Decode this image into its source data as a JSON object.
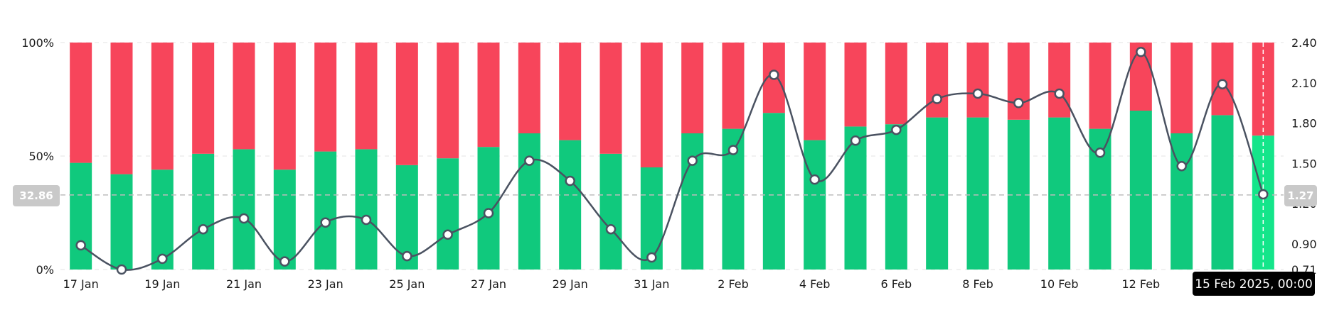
{
  "chart_data": {
    "type": "bar",
    "stacked": true,
    "categories": [
      "17 Jan",
      "18 Jan",
      "19 Jan",
      "20 Jan",
      "21 Jan",
      "22 Jan",
      "23 Jan",
      "24 Jan",
      "25 Jan",
      "26 Jan",
      "27 Jan",
      "28 Jan",
      "29 Jan",
      "30 Jan",
      "31 Jan",
      "1 Feb",
      "2 Feb",
      "3 Feb",
      "4 Feb",
      "5 Feb",
      "6 Feb",
      "7 Feb",
      "8 Feb",
      "9 Feb",
      "10 Feb",
      "11 Feb",
      "12 Feb",
      "13 Feb",
      "14 Feb",
      "15 Feb"
    ],
    "x_tick_labels": [
      "17 Jan",
      "19 Jan",
      "21 Jan",
      "23 Jan",
      "25 Jan",
      "27 Jan",
      "29 Jan",
      "31 Jan",
      "2 Feb",
      "4 Feb",
      "6 Feb",
      "8 Feb",
      "10 Feb",
      "12 Feb"
    ],
    "series": [
      {
        "values": [
          47,
          42,
          44,
          51,
          53,
          44,
          52,
          53,
          46,
          49,
          54,
          60,
          57,
          51,
          45,
          60,
          62,
          69,
          57,
          63,
          64,
          67,
          67,
          66,
          67,
          62,
          70,
          60,
          68,
          59
        ],
        "color": "#10c97d",
        "axis": "left"
      },
      {
        "values": [
          53,
          58,
          56,
          49,
          47,
          56,
          48,
          47,
          54,
          51,
          46,
          40,
          43,
          49,
          55,
          40,
          38,
          31,
          43,
          37,
          36,
          33,
          33,
          34,
          33,
          38,
          30,
          40,
          32,
          41
        ],
        "color": "#f7455b",
        "axis": "left"
      },
      {
        "type": "line",
        "values": [
          0.89,
          0.71,
          0.79,
          1.01,
          1.09,
          0.77,
          1.06,
          1.08,
          0.81,
          0.97,
          1.13,
          1.52,
          1.37,
          1.01,
          0.8,
          1.52,
          1.6,
          2.16,
          1.38,
          1.67,
          1.75,
          1.98,
          2.02,
          1.95,
          2.02,
          1.58,
          2.33,
          1.48,
          2.09,
          1.27
        ],
        "color": "#4a5261",
        "axis": "right"
      }
    ],
    "y_left": {
      "ticks": [
        "0%",
        "50%",
        "100%"
      ],
      "ylim": [
        0,
        100
      ]
    },
    "y_right": {
      "ticks": [
        "0.71",
        "0.90",
        "1.20",
        "1.50",
        "1.80",
        "2.10",
        "2.40"
      ],
      "tick_values": [
        0.71,
        0.9,
        1.2,
        1.5,
        1.8,
        2.1,
        2.4
      ],
      "ylim": [
        0.71,
        2.4
      ]
    },
    "crosshair": {
      "left_label": "32.86",
      "right_label": "1.27",
      "date_label": "15 Feb 2025, 00:00",
      "index": 29
    },
    "grid": true,
    "legend": "none"
  }
}
